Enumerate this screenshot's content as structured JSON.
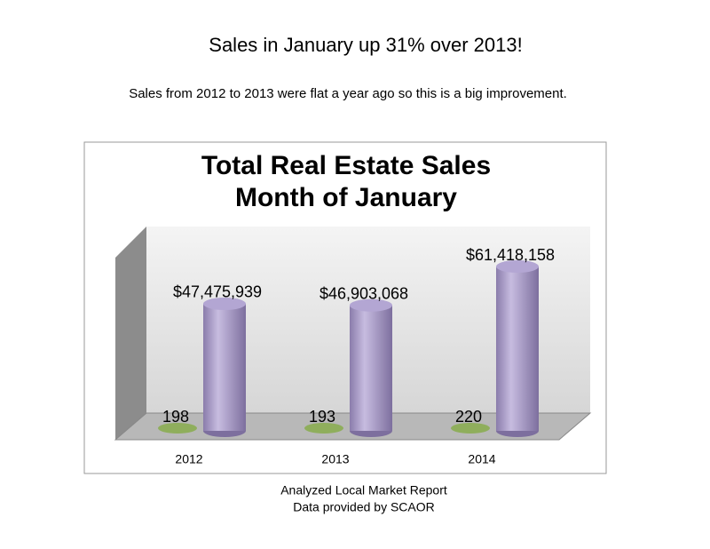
{
  "headline": "Sales in January up 31% over 2013!",
  "note": "Sales from 2012 to 2013 were flat a year ago so this is a big improvement.",
  "footer": [
    "Analyzed Local Market Report",
    "Data provided by SCAOR"
  ],
  "chart_data": {
    "type": "cylinder",
    "title": "Total Real Estate Sales",
    "subtitle": "Month of January",
    "categories": [
      "2012",
      "2013",
      "2014"
    ],
    "series": [
      {
        "color": "#8fae5c",
        "values": [
          198,
          193,
          220
        ]
      },
      {
        "color": "#a99bc9",
        "values": [
          47475939,
          46903068,
          61418158
        ],
        "value_labels": [
          "$47,475,939",
          "$46,903,068",
          "$61,418,158"
        ]
      }
    ]
  }
}
